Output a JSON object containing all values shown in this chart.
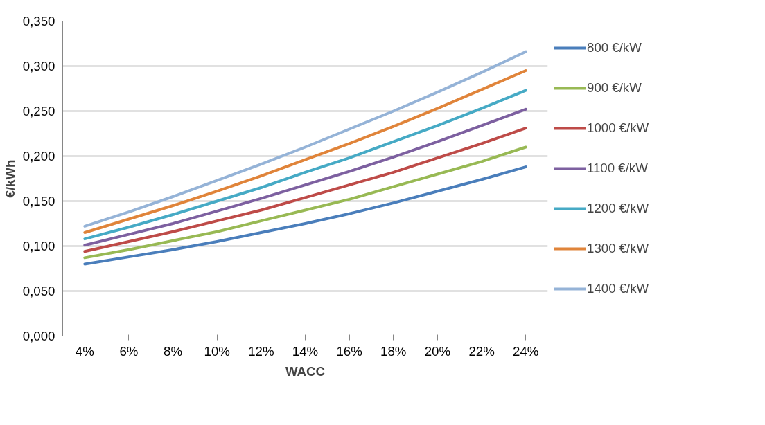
{
  "chart_data": {
    "type": "line",
    "xlabel": "WACC",
    "ylabel": "€/kWh",
    "categories": [
      "4%",
      "6%",
      "8%",
      "10%",
      "12%",
      "14%",
      "16%",
      "18%",
      "20%",
      "22%",
      "24%"
    ],
    "series": [
      {
        "name": "800 €/kW",
        "color": "#4a7ebb",
        "values": [
          0.08,
          0.088,
          0.096,
          0.105,
          0.115,
          0.125,
          0.136,
          0.148,
          0.161,
          0.174,
          0.188
        ]
      },
      {
        "name": "900 €/kW",
        "color": "#98b954",
        "values": [
          0.087,
          0.096,
          0.106,
          0.116,
          0.128,
          0.14,
          0.152,
          0.166,
          0.18,
          0.194,
          0.21
        ]
      },
      {
        "name": "1000 €/kW",
        "color": "#be4b48",
        "values": [
          0.094,
          0.105,
          0.116,
          0.128,
          0.14,
          0.154,
          0.168,
          0.182,
          0.198,
          0.214,
          0.231
        ]
      },
      {
        "name": "1100 €/kW",
        "color": "#7d60a0",
        "values": [
          0.101,
          0.113,
          0.125,
          0.139,
          0.153,
          0.168,
          0.183,
          0.199,
          0.216,
          0.234,
          0.252
        ]
      },
      {
        "name": "1200 €/kW",
        "color": "#46aac5",
        "values": [
          0.108,
          0.121,
          0.135,
          0.15,
          0.165,
          0.182,
          0.198,
          0.216,
          0.234,
          0.253,
          0.273
        ]
      },
      {
        "name": "1300 €/kW",
        "color": "#e0843a",
        "values": [
          0.115,
          0.13,
          0.145,
          0.161,
          0.178,
          0.196,
          0.214,
          0.233,
          0.253,
          0.274,
          0.295
        ]
      },
      {
        "name": "1400 €/kW",
        "color": "#95b3d7",
        "values": [
          0.122,
          0.138,
          0.155,
          0.173,
          0.191,
          0.21,
          0.23,
          0.25,
          0.271,
          0.293,
          0.316
        ]
      }
    ],
    "ylim": [
      0,
      0.35
    ],
    "yticks": [
      {
        "value": 0,
        "label": "0,000"
      },
      {
        "value": 0.05,
        "label": "0,050"
      },
      {
        "value": 0.1,
        "label": "0,100"
      },
      {
        "value": 0.15,
        "label": "0,150"
      },
      {
        "value": 0.2,
        "label": "0,200"
      },
      {
        "value": 0.25,
        "label": "0,250"
      },
      {
        "value": 0.3,
        "label": "0,300"
      },
      {
        "value": 0.35,
        "label": "0,350"
      }
    ],
    "grid": "y",
    "legend": "right",
    "marker": "none",
    "line_style": "solid"
  }
}
